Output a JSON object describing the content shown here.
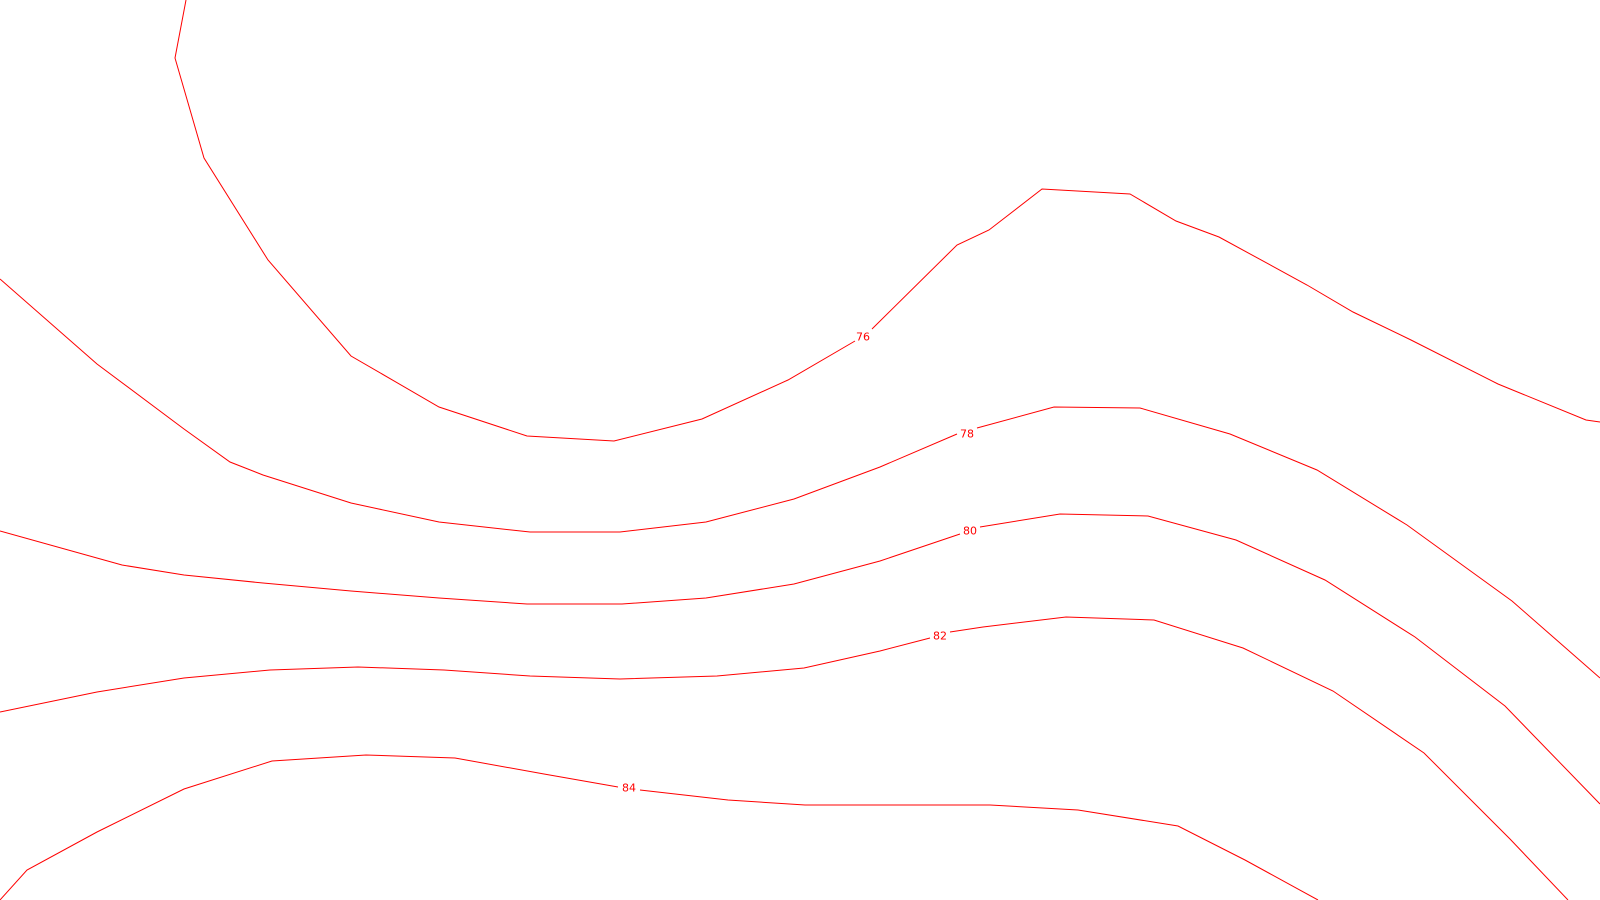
{
  "contour_color": "#ff0000",
  "background_color": "#ffffff",
  "contours": [
    {
      "level": "76"
    },
    {
      "level": "78"
    },
    {
      "level": "80"
    },
    {
      "level": "82"
    },
    {
      "level": "84"
    }
  ]
}
